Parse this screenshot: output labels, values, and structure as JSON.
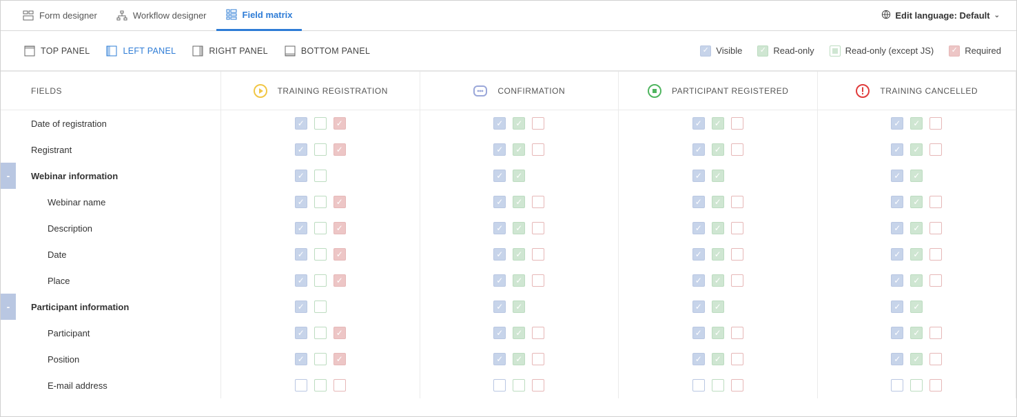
{
  "topTabs": {
    "formDesigner": {
      "label": "Form designer",
      "active": false
    },
    "workflowDesigner": {
      "label": "Workflow designer",
      "active": false
    },
    "fieldMatrix": {
      "label": "Field matrix",
      "active": true
    }
  },
  "languageSwitch": {
    "label": "Edit language: Default"
  },
  "panelTabs": {
    "top": {
      "label": "TOP PANEL",
      "active": false
    },
    "left": {
      "label": "LEFT PANEL",
      "active": true
    },
    "right": {
      "label": "RIGHT PANEL",
      "active": false
    },
    "bottom": {
      "label": "BOTTOM PANEL",
      "active": false
    }
  },
  "legend": {
    "visible": "Visible",
    "readonly": "Read-only",
    "readonlyJs": "Read-only (except JS)",
    "required": "Required"
  },
  "columns": {
    "fields": "FIELDS",
    "c1": {
      "label": "TRAINING REGISTRATION",
      "iconColor": "#f1c644",
      "icon": "play"
    },
    "c2": {
      "label": "CONFIRMATION",
      "iconColor": "#9aa7d9",
      "icon": "dots"
    },
    "c3": {
      "label": "PARTICIPANT REGISTERED",
      "iconColor": "#4fb55f",
      "icon": "stop"
    },
    "c4": {
      "label": "TRAINING CANCELLED",
      "iconColor": "#e03b3b",
      "icon": "alert"
    }
  },
  "rowPattern": {
    "normal_c1": {
      "vis": true,
      "ro": "off",
      "req": true
    },
    "normal_c234": {
      "vis": true,
      "ro": true,
      "req": "off"
    },
    "group_c1": {
      "vis": true,
      "ro": "off",
      "req": null
    },
    "group_c234": {
      "vis": true,
      "ro": true,
      "req": null
    },
    "faded_all": {
      "vis": "off",
      "ro": "off",
      "req": "off"
    }
  },
  "rows": [
    {
      "label": "Date of registration",
      "type": "item",
      "indent": 0,
      "pattern": "normal"
    },
    {
      "label": "Registrant",
      "type": "item",
      "indent": 0,
      "pattern": "normal"
    },
    {
      "label": "Webinar information",
      "type": "group",
      "indent": 0,
      "pattern": "group"
    },
    {
      "label": "Webinar name",
      "type": "item",
      "indent": 1,
      "pattern": "normal"
    },
    {
      "label": "Description",
      "type": "item",
      "indent": 1,
      "pattern": "normal"
    },
    {
      "label": "Date",
      "type": "item",
      "indent": 1,
      "pattern": "normal"
    },
    {
      "label": "Place",
      "type": "item",
      "indent": 1,
      "pattern": "normal"
    },
    {
      "label": "Participant information",
      "type": "group",
      "indent": 0,
      "pattern": "group"
    },
    {
      "label": "Participant",
      "type": "item",
      "indent": 1,
      "pattern": "normal"
    },
    {
      "label": "Position",
      "type": "item",
      "indent": 1,
      "pattern": "normal"
    },
    {
      "label": "E-mail address",
      "type": "item",
      "indent": 1,
      "pattern": "faded"
    }
  ]
}
